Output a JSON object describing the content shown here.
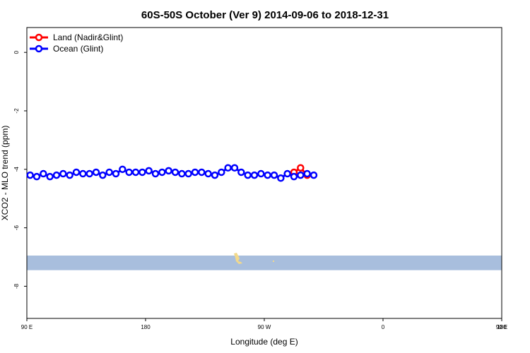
{
  "chart_data": {
    "type": "line",
    "title": "60S-50S October (Ver 9)   2014-09-06 to 2018-12-31",
    "xlabel": "Longitude (deg E)",
    "ylabel": "XCO2 - MLO trend (ppm)",
    "xlim": [
      90,
      450
    ],
    "ylim": [
      -9.1,
      0.85
    ],
    "x_ticks": [
      {
        "value": 90,
        "label": "90 E"
      },
      {
        "value": 180,
        "label": "180"
      },
      {
        "value": 270,
        "label": "90 W"
      },
      {
        "value": 360,
        "label": "0"
      },
      {
        "value": 450,
        "label": "90 E"
      },
      {
        "value": 540,
        "label": "180"
      }
    ],
    "y_ticks": [
      {
        "value": 0,
        "label": "0"
      },
      {
        "value": -2,
        "label": "-2"
      },
      {
        "value": -4,
        "label": "-4"
      },
      {
        "value": -6,
        "label": "-6"
      },
      {
        "value": -8,
        "label": "-8"
      }
    ],
    "legend_position": "top-left",
    "grid": false,
    "series": [
      {
        "name": "Land (Nadir&Glint)",
        "color": "#ff0000",
        "x": [
          292.5,
          297.5,
          302.5
        ],
        "y": [
          -4.1,
          -3.95,
          -4.2
        ]
      },
      {
        "name": "Ocean (Glint)",
        "color": "#0000ff",
        "x": [
          92.5,
          97.5,
          102.5,
          107.5,
          112.5,
          117.5,
          122.5,
          127.5,
          132.5,
          137.5,
          142.5,
          147.5,
          152.5,
          157.5,
          162.5,
          167.5,
          172.5,
          177.5,
          182.5,
          187.5,
          192.5,
          197.5,
          202.5,
          207.5,
          212.5,
          217.5,
          222.5,
          227.5,
          232.5,
          237.5,
          242.5,
          247.5,
          252.5,
          257.5,
          262.5,
          267.5,
          272.5,
          277.5,
          282.5,
          287.5,
          292.5,
          297.5,
          302.5,
          307.5
        ],
        "y": [
          -4.2,
          -4.25,
          -4.15,
          -4.25,
          -4.2,
          -4.15,
          -4.2,
          -4.1,
          -4.15,
          -4.15,
          -4.1,
          -4.2,
          -4.1,
          -4.15,
          -4.0,
          -4.1,
          -4.1,
          -4.1,
          -4.05,
          -4.15,
          -4.1,
          -4.05,
          -4.1,
          -4.15,
          -4.15,
          -4.1,
          -4.1,
          -4.15,
          -4.2,
          -4.1,
          -3.95,
          -3.95,
          -4.1,
          -4.2,
          -4.2,
          -4.15,
          -4.2,
          -4.2,
          -4.3,
          -4.15,
          -4.25,
          -4.2,
          -4.15,
          -4.2
        ]
      }
    ],
    "map_band": {
      "y_top": -6.95,
      "y_bottom": -7.45,
      "color": "#a8bedd"
    }
  }
}
